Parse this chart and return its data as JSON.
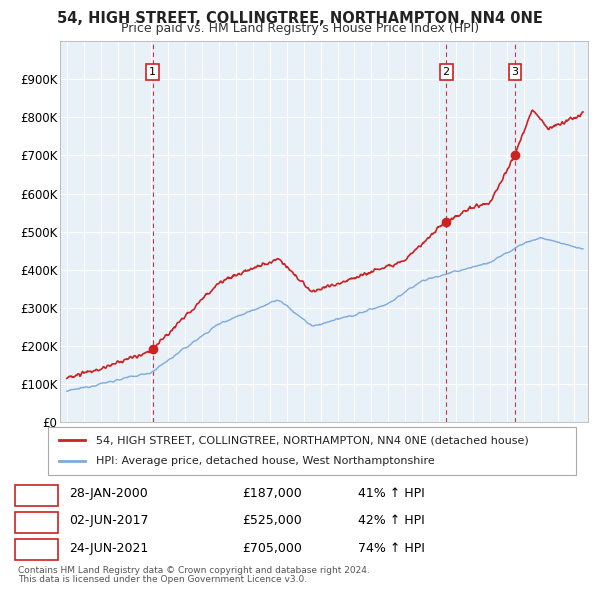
{
  "title": "54, HIGH STREET, COLLINGTREE, NORTHAMPTON, NN4 0NE",
  "subtitle": "Price paid vs. HM Land Registry's House Price Index (HPI)",
  "ylim": [
    0,
    1000000
  ],
  "yticks": [
    0,
    100000,
    200000,
    300000,
    400000,
    500000,
    600000,
    700000,
    800000,
    900000
  ],
  "ytick_labels": [
    "£0",
    "£100K",
    "£200K",
    "£300K",
    "£400K",
    "£500K",
    "£600K",
    "£700K",
    "£800K",
    "£900K"
  ],
  "red_line_color": "#cc2222",
  "blue_line_color": "#7faadd",
  "plot_bg_color": "#e8f0f8",
  "fig_bg_color": "#ffffff",
  "grid_color": "#ffffff",
  "legend_red_label": "54, HIGH STREET, COLLINGTREE, NORTHAMPTON, NN4 0NE (detached house)",
  "legend_blue_label": "HPI: Average price, detached house, West Northamptonshire",
  "transactions": [
    {
      "num": 1,
      "date": "28-JAN-2000",
      "price": "£187,000",
      "pct": "41% ↑ HPI",
      "year": 2000.07,
      "price_val": 187000
    },
    {
      "num": 2,
      "date": "02-JUN-2017",
      "price": "£525,000",
      "pct": "42% ↑ HPI",
      "year": 2017.42,
      "price_val": 525000
    },
    {
      "num": 3,
      "date": "24-JUN-2021",
      "price": "£705,000",
      "pct": "74% ↑ HPI",
      "year": 2021.48,
      "price_val": 705000
    }
  ],
  "footer1": "Contains HM Land Registry data © Crown copyright and database right 2024.",
  "footer2": "This data is licensed under the Open Government Licence v3.0.",
  "xlim_start": 1994.6,
  "xlim_end": 2025.8
}
